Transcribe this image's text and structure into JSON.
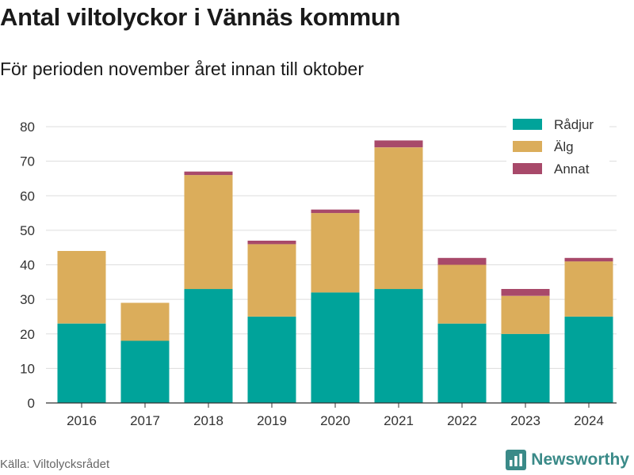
{
  "header": {
    "title": "Antal viltolyckor i Vännäs kommun",
    "subtitle": "För perioden november året innan till oktober"
  },
  "footer": {
    "source": "Källa: Viltolycksrådet",
    "brand": "Newsworthy",
    "brand_icon": "bar-chart-logo-icon"
  },
  "colors": {
    "radjur": "#00a39a",
    "alg": "#dbad5b",
    "annat": "#a8496a",
    "grid": "#dddddd",
    "axis": "#333333"
  },
  "chart_data": {
    "type": "bar",
    "stacked": true,
    "categories": [
      "2016",
      "2017",
      "2018",
      "2019",
      "2020",
      "2021",
      "2022",
      "2023",
      "2024"
    ],
    "series": [
      {
        "name": "Rådjur",
        "values": [
          23,
          18,
          33,
          25,
          32,
          33,
          23,
          20,
          25
        ]
      },
      {
        "name": "Älg",
        "values": [
          21,
          11,
          33,
          21,
          23,
          41,
          17,
          11,
          16
        ]
      },
      {
        "name": "Annat",
        "values": [
          0,
          0,
          1,
          1,
          1,
          2,
          2,
          2,
          1
        ]
      }
    ],
    "ylim": [
      0,
      80
    ],
    "yticks": [
      0,
      10,
      20,
      30,
      40,
      50,
      60,
      70,
      80
    ],
    "grid": true,
    "legend_position": "top-right"
  }
}
